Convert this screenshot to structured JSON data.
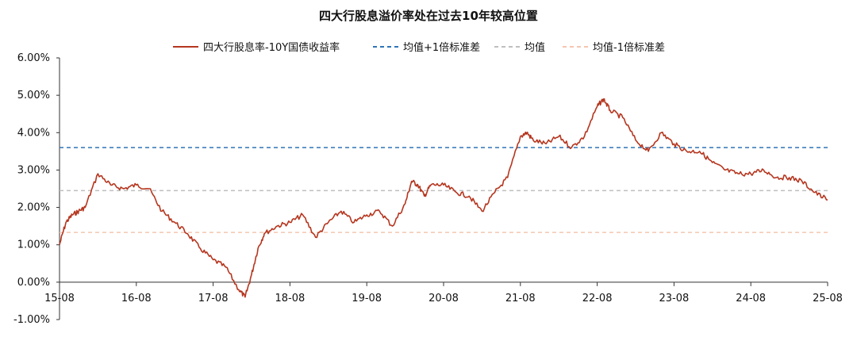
{
  "chart_data": {
    "type": "line",
    "title": "四大行股息溢价率处在过去10年较高位置",
    "xlabel": "",
    "ylabel": "",
    "x_ticks": [
      "15-08",
      "16-08",
      "17-08",
      "18-08",
      "19-08",
      "20-08",
      "21-08",
      "22-08",
      "23-08",
      "24-08",
      "25-08"
    ],
    "y_ticks": [
      "6.00%",
      "5.00%",
      "4.00%",
      "3.00%",
      "2.00%",
      "1.00%",
      "0.00%",
      "-1.00%"
    ],
    "ylim": [
      -1,
      6
    ],
    "grid": false,
    "legend_position": "top",
    "series": [
      {
        "name": "四大行股息率-10Y国债收益率",
        "style": "solid",
        "color": "#b5361f",
        "x": [
          "15-08",
          "15-09",
          "15-10",
          "15-11",
          "15-12",
          "16-02",
          "16-04",
          "16-06",
          "16-08",
          "16-10",
          "16-12",
          "17-02",
          "17-04",
          "17-06",
          "17-08",
          "17-10",
          "17-12",
          "18-01",
          "18-02",
          "18-03",
          "18-04",
          "18-06",
          "18-08",
          "18-10",
          "18-12",
          "19-02",
          "19-04",
          "19-06",
          "19-08",
          "19-10",
          "19-12",
          "20-02",
          "20-03",
          "20-04",
          "20-05",
          "20-06",
          "20-08",
          "20-10",
          "20-12",
          "21-02",
          "21-04",
          "21-06",
          "21-08",
          "21-09",
          "21-10",
          "21-12",
          "22-02",
          "22-04",
          "22-06",
          "22-08",
          "22-09",
          "22-10",
          "22-12",
          "23-02",
          "23-04",
          "23-06",
          "23-08",
          "23-10",
          "23-12",
          "24-02",
          "24-04",
          "24-06",
          "24-08",
          "24-10",
          "24-12",
          "25-02",
          "25-04",
          "25-06",
          "25-08"
        ],
        "values": [
          1.0,
          1.6,
          1.8,
          1.9,
          2.0,
          2.9,
          2.6,
          2.5,
          2.6,
          2.5,
          1.9,
          1.6,
          1.3,
          0.9,
          0.6,
          0.4,
          -0.2,
          -0.4,
          0.2,
          0.9,
          1.3,
          1.5,
          1.6,
          1.8,
          1.2,
          1.6,
          1.9,
          1.6,
          1.8,
          1.9,
          1.5,
          2.1,
          2.7,
          2.6,
          2.3,
          2.6,
          2.6,
          2.4,
          2.3,
          1.9,
          2.4,
          2.8,
          3.9,
          4.0,
          3.8,
          3.7,
          3.9,
          3.6,
          3.9,
          4.7,
          4.9,
          4.6,
          4.4,
          3.8,
          3.5,
          4.0,
          3.7,
          3.5,
          3.5,
          3.2,
          3.0,
          2.9,
          2.9,
          3.0,
          2.8,
          2.8,
          2.7,
          2.4,
          2.2
        ]
      },
      {
        "name": "均值+1倍标准差",
        "style": "dashed",
        "color": "#2e75b6",
        "value": 3.6
      },
      {
        "name": "均值",
        "style": "dashed",
        "color": "#bfbfbf",
        "value": 2.45
      },
      {
        "name": "均值-1倍标准差",
        "style": "dashed",
        "color": "#f4c6b0",
        "value": 1.33
      }
    ]
  }
}
